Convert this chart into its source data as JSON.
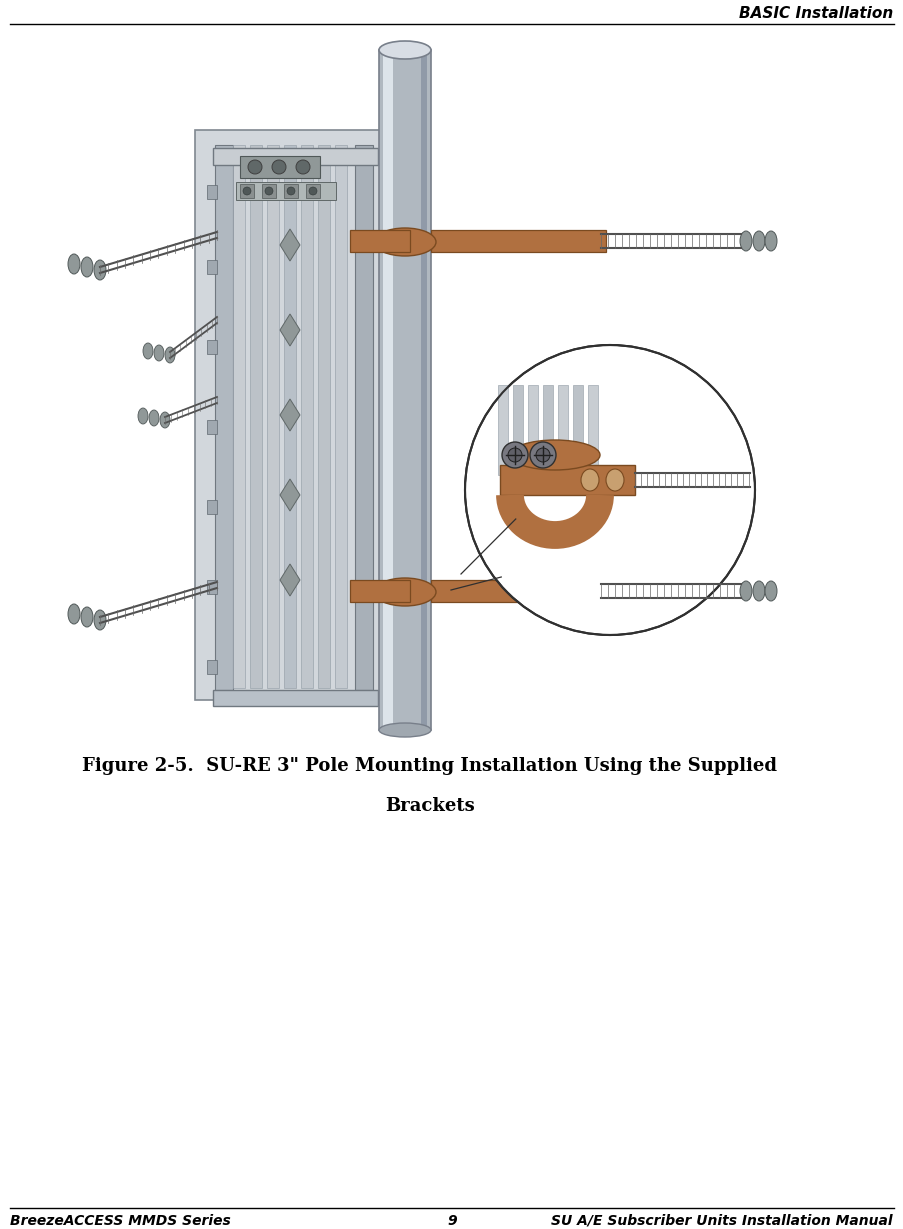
{
  "header_text": "BASIC Installation",
  "footer_left": "BreezeACCESS MMDS Series",
  "footer_center": "9",
  "footer_right": "SU A/E Subscriber Units Installation Manual",
  "caption_line1": "Figure 2-5.  SU-RE 3\" Pole Mounting Installation Using the Supplied",
  "caption_line2": "Brackets",
  "bg_color": "#ffffff",
  "text_color": "#000000",
  "header_fontsize": 11,
  "footer_fontsize": 10,
  "caption_fontsize": 13,
  "fig_width": 9.04,
  "fig_height": 12.29,
  "bracket_color": "#b07040",
  "bracket_dark": "#7a4a20",
  "device_body": "#c8cdd2",
  "device_dark": "#909aa4",
  "pole_light": "#d8dde2",
  "pole_mid": "#b0b8c0",
  "pole_dark": "#888fa8"
}
